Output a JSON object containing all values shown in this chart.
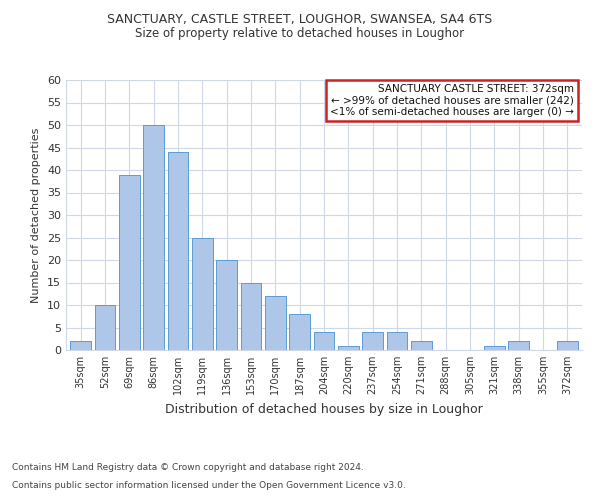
{
  "title": "SANCTUARY, CASTLE STREET, LOUGHOR, SWANSEA, SA4 6TS",
  "subtitle": "Size of property relative to detached houses in Loughor",
  "xlabel": "Distribution of detached houses by size in Loughor",
  "ylabel": "Number of detached properties",
  "categories": [
    "35sqm",
    "52sqm",
    "69sqm",
    "86sqm",
    "102sqm",
    "119sqm",
    "136sqm",
    "153sqm",
    "170sqm",
    "187sqm",
    "204sqm",
    "220sqm",
    "237sqm",
    "254sqm",
    "271sqm",
    "288sqm",
    "305sqm",
    "321sqm",
    "338sqm",
    "355sqm",
    "372sqm"
  ],
  "values": [
    2,
    10,
    39,
    50,
    44,
    25,
    20,
    15,
    12,
    8,
    4,
    1,
    4,
    4,
    2,
    0,
    0,
    1,
    2,
    0,
    2
  ],
  "bar_color": "#aec6e8",
  "bar_edgecolor": "#5b9bd5",
  "annotation_title": "SANCTUARY CASTLE STREET: 372sqm",
  "annotation_line1": "← >99% of detached houses are smaller (242)",
  "annotation_line2": "<1% of semi-detached houses are larger (0) →",
  "annotation_box_color": "#cc2222",
  "ylim": [
    0,
    60
  ],
  "yticks": [
    0,
    5,
    10,
    15,
    20,
    25,
    30,
    35,
    40,
    45,
    50,
    55,
    60
  ],
  "footer_line1": "Contains HM Land Registry data © Crown copyright and database right 2024.",
  "footer_line2": "Contains public sector information licensed under the Open Government Licence v3.0.",
  "background_color": "#ffffff",
  "grid_color": "#d0d8e8"
}
